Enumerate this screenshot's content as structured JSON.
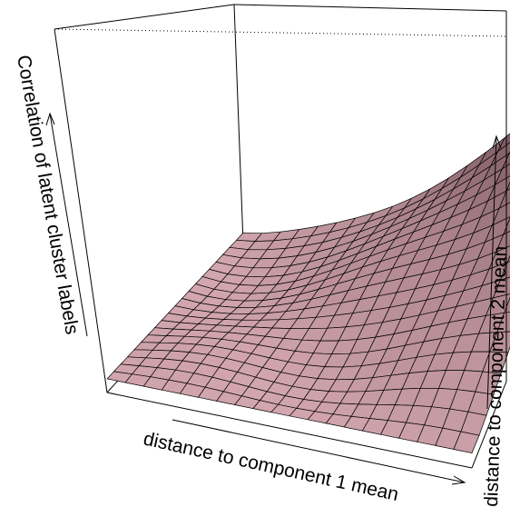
{
  "chart_data": {
    "type": "surface3d",
    "title": "",
    "xlabel": "distance to component 1 mean",
    "ylabel": "distance to component 2 mean",
    "zlabel": "Correlation of latent cluster labels",
    "grid_size": [
      20,
      20
    ],
    "z_range": [
      0,
      1
    ],
    "surface_color": "#d4a7b0",
    "description_values": {
      "z_min_corner": 0.0,
      "z_max_corner": 1.0
    }
  }
}
